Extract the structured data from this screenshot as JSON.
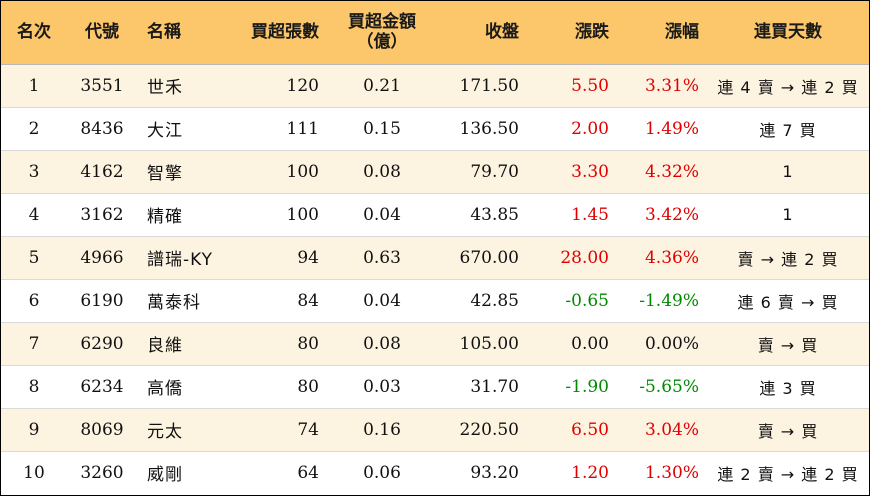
{
  "headers": {
    "rank": "名次",
    "code": "代號",
    "name": "名稱",
    "net_buy_lots": "買超張數",
    "net_buy_amount_line1": "買超金額",
    "net_buy_amount_line2": "（億）",
    "close": "收盤",
    "change": "漲跌",
    "change_pct": "漲幅",
    "streak": "連買天數"
  },
  "colors": {
    "header_bg": "#fcc66a",
    "row_alt_bg": "#fdf3e1",
    "up": "#e00000",
    "down": "#008a00"
  },
  "rows": [
    {
      "rank": "1",
      "code": "3551",
      "name": "世禾",
      "lots": "120",
      "amount": "0.21",
      "close": "171.50",
      "change": "5.50",
      "pct": "3.31%",
      "streak": "連 4 賣 → 連 2 買",
      "dir": "up"
    },
    {
      "rank": "2",
      "code": "8436",
      "name": "大江",
      "lots": "111",
      "amount": "0.15",
      "close": "136.50",
      "change": "2.00",
      "pct": "1.49%",
      "streak": "連 7 買",
      "dir": "up"
    },
    {
      "rank": "3",
      "code": "4162",
      "name": "智擎",
      "lots": "100",
      "amount": "0.08",
      "close": "79.70",
      "change": "3.30",
      "pct": "4.32%",
      "streak": "1",
      "dir": "up"
    },
    {
      "rank": "4",
      "code": "3162",
      "name": "精確",
      "lots": "100",
      "amount": "0.04",
      "close": "43.85",
      "change": "1.45",
      "pct": "3.42%",
      "streak": "1",
      "dir": "up"
    },
    {
      "rank": "5",
      "code": "4966",
      "name": "譜瑞-KY",
      "lots": "94",
      "amount": "0.63",
      "close": "670.00",
      "change": "28.00",
      "pct": "4.36%",
      "streak": "賣 → 連 2 買",
      "dir": "up"
    },
    {
      "rank": "6",
      "code": "6190",
      "name": "萬泰科",
      "lots": "84",
      "amount": "0.04",
      "close": "42.85",
      "change": "-0.65",
      "pct": "-1.49%",
      "streak": "連 6 賣 → 買",
      "dir": "down"
    },
    {
      "rank": "7",
      "code": "6290",
      "name": "良維",
      "lots": "80",
      "amount": "0.08",
      "close": "105.00",
      "change": "0.00",
      "pct": "0.00%",
      "streak": "賣 → 買",
      "dir": "flat"
    },
    {
      "rank": "8",
      "code": "6234",
      "name": "高僑",
      "lots": "80",
      "amount": "0.03",
      "close": "31.70",
      "change": "-1.90",
      "pct": "-5.65%",
      "streak": "連 3 買",
      "dir": "down"
    },
    {
      "rank": "9",
      "code": "8069",
      "name": "元太",
      "lots": "74",
      "amount": "0.16",
      "close": "220.50",
      "change": "6.50",
      "pct": "3.04%",
      "streak": "賣 → 買",
      "dir": "up"
    },
    {
      "rank": "10",
      "code": "3260",
      "name": "威剛",
      "lots": "64",
      "amount": "0.06",
      "close": "93.20",
      "change": "1.20",
      "pct": "1.30%",
      "streak": "連 2 賣 → 連 2 買",
      "dir": "up"
    }
  ]
}
